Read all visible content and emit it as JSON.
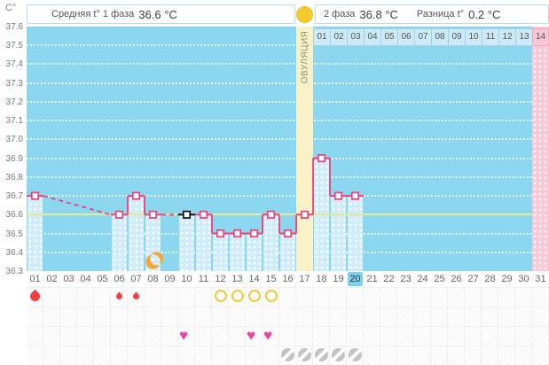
{
  "header": {
    "unit_label": "C°",
    "phase1_label": "Средняя t° 1 фаза",
    "phase1_value": "36.6 °C",
    "phase2_label": "2 фаза",
    "phase2_value": "36.8 °C",
    "diff_label": "Разница t°",
    "diff_value": "0.2 °C",
    "ovulation_label": "ОВУЛЯЦИЯ"
  },
  "colors": {
    "chart_bg": "#8cd7f0",
    "measured_bar": "#cfecfa",
    "ovulation_column": "#f9f2c7",
    "expected_period_column": "#f9c7d6",
    "average_line": "#eae98e",
    "temp_line": "#ee4078",
    "excluded_marker": "#111111",
    "menstruation_red": "#f04045",
    "intercourse_pink": "#ef45a0",
    "test_circle_yellow": "#f1ca3a",
    "pill_gray": "#c4c4c4",
    "moon_orange": "#f2a63c",
    "sun_yellow": "#f6ca2d",
    "today_highlight": "#7ed2ef"
  },
  "chart_data": {
    "type": "line",
    "xlabel": "",
    "ylabel": "C°",
    "ylim": [
      36.3,
      37.6
    ],
    "ytick_step": 0.1,
    "ytick_labels": [
      "37.6",
      "37.5",
      "37.4",
      "37.3",
      "37.2",
      "37.1",
      "37.0",
      "36.9",
      "36.8",
      "36.7",
      "36.6",
      "36.5",
      "36.4",
      "36.3"
    ],
    "days_in_cycle": 31,
    "day_labels": [
      "01",
      "02",
      "03",
      "04",
      "05",
      "06",
      "07",
      "08",
      "09",
      "10",
      "11",
      "12",
      "13",
      "14",
      "15",
      "16",
      "17",
      "18",
      "19",
      "20",
      "21",
      "22",
      "23",
      "24",
      "25",
      "26",
      "27",
      "28",
      "29",
      "30",
      "31"
    ],
    "phase2_day_labels": [
      "01",
      "02",
      "03",
      "04",
      "05",
      "06",
      "07",
      "08",
      "09",
      "10",
      "11",
      "12",
      "13",
      "14"
    ],
    "points": [
      {
        "day": 1,
        "temp": 36.7
      },
      {
        "day": 6,
        "temp": 36.6
      },
      {
        "day": 7,
        "temp": 36.7
      },
      {
        "day": 8,
        "temp": 36.6
      },
      {
        "day": 10,
        "temp": 36.6,
        "marker": "black"
      },
      {
        "day": 11,
        "temp": 36.6
      },
      {
        "day": 12,
        "temp": 36.5
      },
      {
        "day": 13,
        "temp": 36.5
      },
      {
        "day": 14,
        "temp": 36.5
      },
      {
        "day": 15,
        "temp": 36.6
      },
      {
        "day": 16,
        "temp": 36.5
      },
      {
        "day": 17,
        "temp": 36.6
      },
      {
        "day": 18,
        "temp": 36.9
      },
      {
        "day": 19,
        "temp": 36.7
      },
      {
        "day": 20,
        "temp": 36.7
      }
    ],
    "average_line_temp": 36.6,
    "ovulation_day": 17,
    "expected_period_day": 31,
    "today_day": 20,
    "events": {
      "menstruation": [
        {
          "day": 1,
          "size": "large"
        },
        {
          "day": 6,
          "size": "small"
        },
        {
          "day": 7,
          "size": "small"
        }
      ],
      "ovulation_test": [
        12,
        13,
        14,
        15
      ],
      "intercourse": [
        10,
        14,
        15
      ],
      "pill": [
        16,
        17,
        18,
        19,
        20
      ],
      "moon": [
        8
      ]
    }
  }
}
